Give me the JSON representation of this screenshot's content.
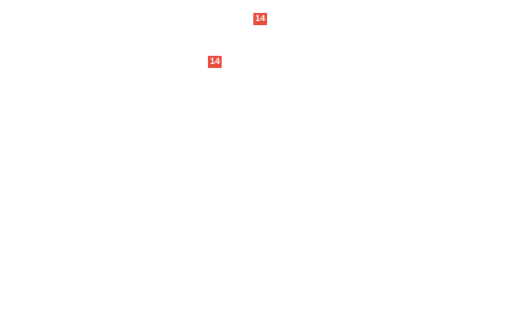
{
  "page": {
    "background_color": "#ffffff"
  },
  "badges": [
    {
      "label": "14",
      "background_color": "#e74c3c",
      "text_color": "#ffffff"
    },
    {
      "label": "14",
      "background_color": "#e74c3c",
      "text_color": "#ffffff"
    }
  ]
}
